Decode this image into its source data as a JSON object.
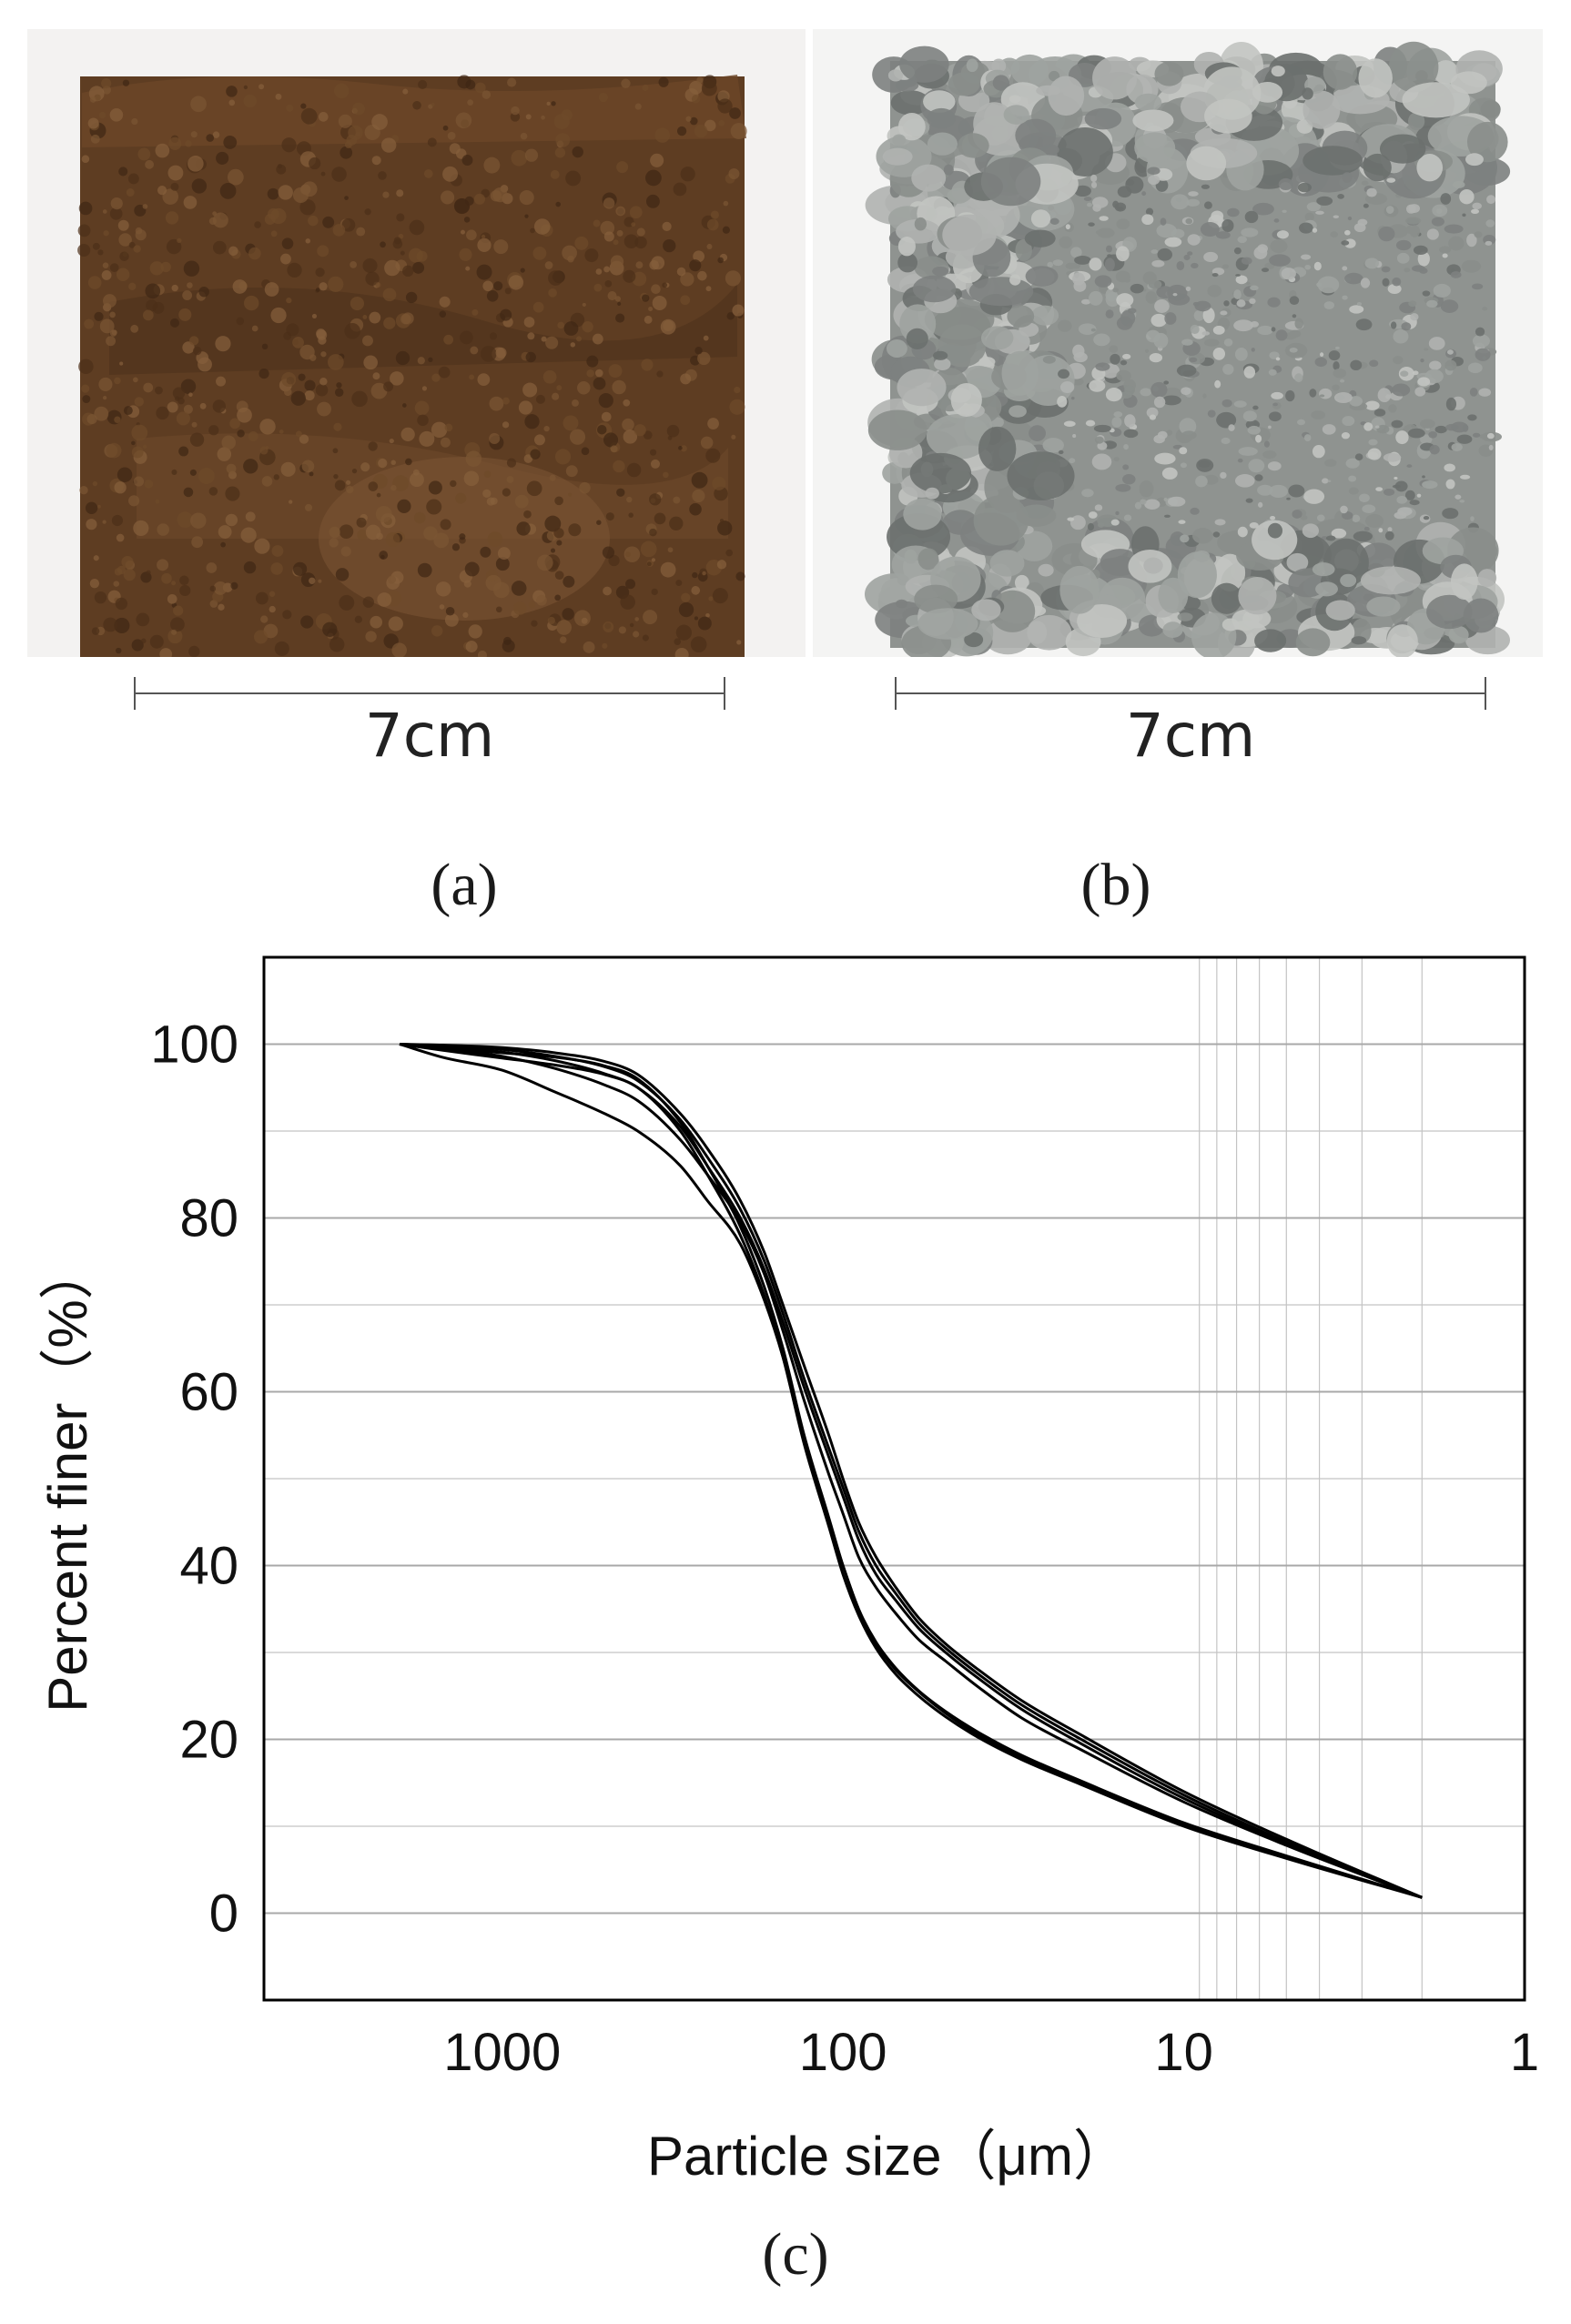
{
  "photos": [
    {
      "panel": "a",
      "scale_label": "7cm",
      "subject": "soil"
    },
    {
      "panel": "b",
      "scale_label": "7cm",
      "subject": "gravel"
    }
  ],
  "panel_labels": {
    "a": "(a)",
    "b": "(b)",
    "c": "(c)"
  },
  "colors": {
    "soil": "#5e3d22",
    "gravel": "#8f9390",
    "curve": "#000000",
    "grid": "#c4c4c4"
  },
  "chart_data": {
    "type": "line",
    "xlabel": "Particle size（μm）",
    "ylabel": "Percent finer（%）",
    "x_scale": "log",
    "x_reversed": true,
    "xlim": [
      5000,
      1
    ],
    "ylim": [
      -10,
      110
    ],
    "x_ticks": [
      1000,
      100,
      10,
      1
    ],
    "x_tick_labels": [
      "1000",
      "100",
      "10",
      "1"
    ],
    "y_ticks": [
      0,
      20,
      40,
      60,
      80,
      100
    ],
    "y_tick_labels": [
      "0",
      "20",
      "40",
      "60",
      "80",
      "100"
    ],
    "grid": true,
    "series": [
      {
        "x": [
          2000,
          1500,
          1000,
          700,
          500,
          400,
          300,
          250,
          200,
          170,
          150,
          130,
          110,
          100,
          90,
          80,
          70,
          60,
          50,
          40,
          30,
          20,
          10,
          5,
          2
        ],
        "y": [
          100,
          99.9,
          99.6,
          99,
          98,
          96.5,
          92,
          88,
          82,
          76,
          70,
          63,
          55,
          50,
          45,
          41,
          37.5,
          34,
          31,
          28,
          24.5,
          20.5,
          14,
          8.5,
          1.8
        ]
      },
      {
        "x": [
          2000,
          1500,
          1000,
          700,
          500,
          400,
          300,
          250,
          200,
          170,
          150,
          130,
          110,
          100,
          90,
          80,
          70,
          60,
          50,
          40,
          30,
          20,
          10,
          5,
          2
        ],
        "y": [
          100,
          99.8,
          99.4,
          98.6,
          97.4,
          95.8,
          91.3,
          87,
          81,
          75,
          69,
          61.5,
          53.5,
          49,
          44,
          40,
          36.8,
          33.4,
          30.5,
          27.5,
          24,
          20,
          13.6,
          8.2,
          1.8
        ]
      },
      {
        "x": [
          2000,
          1500,
          1000,
          700,
          500,
          400,
          300,
          250,
          200,
          170,
          150,
          130,
          110,
          100,
          90,
          80,
          70,
          60,
          50,
          40,
          30,
          20,
          10,
          5,
          2
        ],
        "y": [
          100,
          99.7,
          99.1,
          98.1,
          96.6,
          95,
          90.5,
          86,
          80,
          74,
          68,
          60.5,
          52.5,
          48,
          43,
          39,
          36,
          32.8,
          30,
          27,
          23.5,
          19.5,
          13.2,
          8,
          1.8
        ]
      },
      {
        "x": [
          2000,
          1500,
          1000,
          700,
          500,
          400,
          300,
          250,
          200,
          170,
          150,
          130,
          110,
          100,
          90,
          80,
          70,
          60,
          50,
          40,
          30,
          20,
          10,
          5,
          2
        ],
        "y": [
          100,
          99.5,
          98.6,
          97.2,
          95.3,
          93.5,
          89,
          85,
          79.5,
          73.5,
          67,
          59,
          50.5,
          46,
          41,
          37.5,
          34.5,
          31.5,
          29,
          26,
          22.5,
          18.8,
          12.8,
          7.8,
          1.8
        ]
      },
      {
        "x": [
          2000,
          1500,
          1000,
          700,
          500,
          400,
          300,
          250,
          200,
          170,
          150,
          130,
          110,
          100,
          90,
          80,
          70,
          60,
          50,
          40,
          30,
          20,
          10,
          5,
          2
        ],
        "y": [
          100,
          99.6,
          99,
          98.5,
          97.5,
          96,
          91,
          86,
          79,
          72,
          65,
          55,
          45.5,
          40,
          35,
          31,
          28,
          25.5,
          23,
          20.5,
          18,
          15,
          10.2,
          6.5,
          1.8
        ]
      },
      {
        "x": [
          2000,
          1500,
          1000,
          700,
          500,
          400,
          300,
          250,
          200,
          170,
          150,
          130,
          110,
          100,
          90,
          80,
          70,
          60,
          50,
          40,
          30,
          20,
          10,
          5,
          2
        ],
        "y": [
          100,
          99.3,
          98.4,
          97.6,
          96.5,
          95,
          90,
          85,
          78,
          71,
          64,
          54,
          44.5,
          39,
          34.3,
          30.5,
          27.5,
          25,
          22.6,
          20.2,
          17.7,
          14.8,
          10,
          6.3,
          1.8
        ]
      },
      {
        "x": [
          2000,
          1500,
          1000,
          700,
          500,
          400,
          300,
          250,
          200,
          170,
          150,
          130,
          110,
          100,
          90,
          80,
          70,
          60,
          50,
          40,
          30,
          20,
          10,
          5,
          2
        ],
        "y": [
          100,
          98.5,
          97,
          94.5,
          92,
          90,
          86,
          82,
          77,
          70.5,
          64,
          54.5,
          45,
          40,
          35,
          31.2,
          28.2,
          25.6,
          23.2,
          20.8,
          18.2,
          15.2,
          10.4,
          6.6,
          1.8
        ]
      }
    ]
  }
}
